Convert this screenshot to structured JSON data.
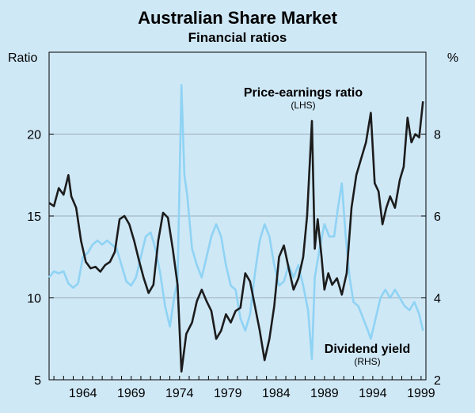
{
  "chart_data": {
    "type": "line",
    "title": "Australian Share Market",
    "subtitle": "Financial ratios",
    "y_left": {
      "unit": "Ratio",
      "range": [
        5,
        25
      ],
      "ticks": [
        5,
        10,
        15,
        20
      ]
    },
    "y_right": {
      "unit": "%",
      "range": [
        2,
        10
      ],
      "ticks": [
        2,
        4,
        6,
        8
      ]
    },
    "x": {
      "range": [
        1960.5,
        1999.5
      ],
      "ticks": [
        1964,
        1969,
        1974,
        1979,
        1984,
        1989,
        1994,
        1999
      ]
    },
    "grid": true,
    "annotations": [
      {
        "text": "Price-earnings ratio",
        "sub": "(LHS)",
        "series": "pe"
      },
      {
        "text": "Dividend yield",
        "sub": "(RHS)",
        "series": "dy"
      }
    ],
    "series": [
      {
        "id": "pe",
        "axis": "left",
        "color": "#1c1c1c",
        "points": [
          [
            1960.5,
            15.8
          ],
          [
            1961.0,
            15.6
          ],
          [
            1961.5,
            16.7
          ],
          [
            1962.0,
            16.3
          ],
          [
            1962.5,
            17.5
          ],
          [
            1962.8,
            16.2
          ],
          [
            1963.3,
            15.5
          ],
          [
            1963.8,
            13.5
          ],
          [
            1964.3,
            12.2
          ],
          [
            1964.8,
            11.8
          ],
          [
            1965.3,
            11.9
          ],
          [
            1965.8,
            11.6
          ],
          [
            1966.3,
            12.0
          ],
          [
            1966.8,
            12.2
          ],
          [
            1967.3,
            12.8
          ],
          [
            1967.8,
            14.8
          ],
          [
            1968.3,
            15.0
          ],
          [
            1968.8,
            14.5
          ],
          [
            1969.3,
            13.5
          ],
          [
            1969.8,
            12.3
          ],
          [
            1970.3,
            11.2
          ],
          [
            1970.8,
            10.3
          ],
          [
            1971.3,
            10.8
          ],
          [
            1971.8,
            13.5
          ],
          [
            1972.3,
            15.2
          ],
          [
            1972.8,
            14.9
          ],
          [
            1973.3,
            13.0
          ],
          [
            1973.8,
            10.8
          ],
          [
            1974.2,
            5.5
          ],
          [
            1974.7,
            7.8
          ],
          [
            1975.3,
            8.5
          ],
          [
            1975.8,
            9.8
          ],
          [
            1976.3,
            10.5
          ],
          [
            1976.8,
            9.8
          ],
          [
            1977.3,
            9.2
          ],
          [
            1977.8,
            7.5
          ],
          [
            1978.3,
            8.0
          ],
          [
            1978.8,
            9.0
          ],
          [
            1979.3,
            8.5
          ],
          [
            1979.8,
            9.2
          ],
          [
            1980.3,
            9.4
          ],
          [
            1980.8,
            11.5
          ],
          [
            1981.3,
            11.0
          ],
          [
            1981.8,
            9.5
          ],
          [
            1982.3,
            8.0
          ],
          [
            1982.8,
            6.2
          ],
          [
            1983.3,
            7.5
          ],
          [
            1983.8,
            9.5
          ],
          [
            1984.3,
            12.5
          ],
          [
            1984.8,
            13.2
          ],
          [
            1985.3,
            11.8
          ],
          [
            1985.8,
            10.5
          ],
          [
            1986.3,
            11.2
          ],
          [
            1986.8,
            12.5
          ],
          [
            1987.2,
            15.0
          ],
          [
            1987.7,
            20.8
          ],
          [
            1988.0,
            13.0
          ],
          [
            1988.3,
            14.8
          ],
          [
            1988.7,
            12.5
          ],
          [
            1989.0,
            10.5
          ],
          [
            1989.4,
            11.5
          ],
          [
            1989.8,
            10.8
          ],
          [
            1990.3,
            11.2
          ],
          [
            1990.8,
            10.2
          ],
          [
            1991.3,
            11.5
          ],
          [
            1991.8,
            15.5
          ],
          [
            1992.3,
            17.5
          ],
          [
            1992.8,
            18.5
          ],
          [
            1993.3,
            19.5
          ],
          [
            1993.8,
            21.3
          ],
          [
            1994.2,
            17.0
          ],
          [
            1994.6,
            16.5
          ],
          [
            1995.0,
            14.5
          ],
          [
            1995.4,
            15.5
          ],
          [
            1995.8,
            16.2
          ],
          [
            1996.3,
            15.5
          ],
          [
            1996.8,
            17.2
          ],
          [
            1997.2,
            18.0
          ],
          [
            1997.6,
            21.0
          ],
          [
            1998.0,
            19.5
          ],
          [
            1998.4,
            20.0
          ],
          [
            1998.8,
            19.8
          ],
          [
            1999.2,
            22.0
          ]
        ]
      },
      {
        "id": "dy",
        "axis": "right",
        "color": "#8fd3f4",
        "points": [
          [
            1960.5,
            4.5
          ],
          [
            1961.0,
            4.65
          ],
          [
            1961.5,
            4.6
          ],
          [
            1962.0,
            4.65
          ],
          [
            1962.5,
            4.35
          ],
          [
            1963.0,
            4.25
          ],
          [
            1963.5,
            4.35
          ],
          [
            1964.0,
            5.0
          ],
          [
            1964.5,
            5.1
          ],
          [
            1965.0,
            5.3
          ],
          [
            1965.5,
            5.4
          ],
          [
            1966.0,
            5.3
          ],
          [
            1966.5,
            5.4
          ],
          [
            1967.0,
            5.3
          ],
          [
            1967.5,
            5.2
          ],
          [
            1968.0,
            4.8
          ],
          [
            1968.5,
            4.4
          ],
          [
            1969.0,
            4.3
          ],
          [
            1969.5,
            4.5
          ],
          [
            1970.0,
            5.0
          ],
          [
            1970.5,
            5.5
          ],
          [
            1971.0,
            5.6
          ],
          [
            1971.5,
            5.2
          ],
          [
            1972.0,
            4.6
          ],
          [
            1972.5,
            3.8
          ],
          [
            1973.0,
            3.3
          ],
          [
            1973.5,
            4.1
          ],
          [
            1973.8,
            4.4
          ],
          [
            1974.2,
            9.2
          ],
          [
            1974.5,
            7.0
          ],
          [
            1974.8,
            6.5
          ],
          [
            1975.3,
            5.2
          ],
          [
            1975.8,
            4.8
          ],
          [
            1976.3,
            4.5
          ],
          [
            1976.8,
            5.0
          ],
          [
            1977.3,
            5.5
          ],
          [
            1977.8,
            5.8
          ],
          [
            1978.3,
            5.5
          ],
          [
            1978.8,
            4.8
          ],
          [
            1979.3,
            4.3
          ],
          [
            1979.8,
            4.2
          ],
          [
            1980.3,
            3.5
          ],
          [
            1980.8,
            3.2
          ],
          [
            1981.3,
            3.6
          ],
          [
            1981.8,
            4.6
          ],
          [
            1982.3,
            5.4
          ],
          [
            1982.8,
            5.8
          ],
          [
            1983.3,
            5.5
          ],
          [
            1983.8,
            4.8
          ],
          [
            1984.3,
            4.3
          ],
          [
            1984.8,
            4.4
          ],
          [
            1985.3,
            4.8
          ],
          [
            1985.8,
            4.5
          ],
          [
            1986.3,
            4.8
          ],
          [
            1986.8,
            4.3
          ],
          [
            1987.3,
            3.7
          ],
          [
            1987.7,
            2.5
          ],
          [
            1988.0,
            4.5
          ],
          [
            1988.5,
            5.2
          ],
          [
            1989.0,
            5.8
          ],
          [
            1989.5,
            5.5
          ],
          [
            1990.0,
            5.5
          ],
          [
            1990.4,
            6.2
          ],
          [
            1990.8,
            6.8
          ],
          [
            1991.2,
            5.5
          ],
          [
            1991.6,
            4.5
          ],
          [
            1992.0,
            3.9
          ],
          [
            1992.5,
            3.8
          ],
          [
            1993.0,
            3.5
          ],
          [
            1993.5,
            3.2
          ],
          [
            1993.8,
            3.0
          ],
          [
            1994.3,
            3.5
          ],
          [
            1994.8,
            4.0
          ],
          [
            1995.3,
            4.2
          ],
          [
            1995.8,
            4.0
          ],
          [
            1996.3,
            4.2
          ],
          [
            1996.8,
            4.0
          ],
          [
            1997.3,
            3.8
          ],
          [
            1997.8,
            3.7
          ],
          [
            1998.3,
            3.9
          ],
          [
            1998.8,
            3.6
          ],
          [
            1999.2,
            3.2
          ]
        ]
      }
    ]
  }
}
